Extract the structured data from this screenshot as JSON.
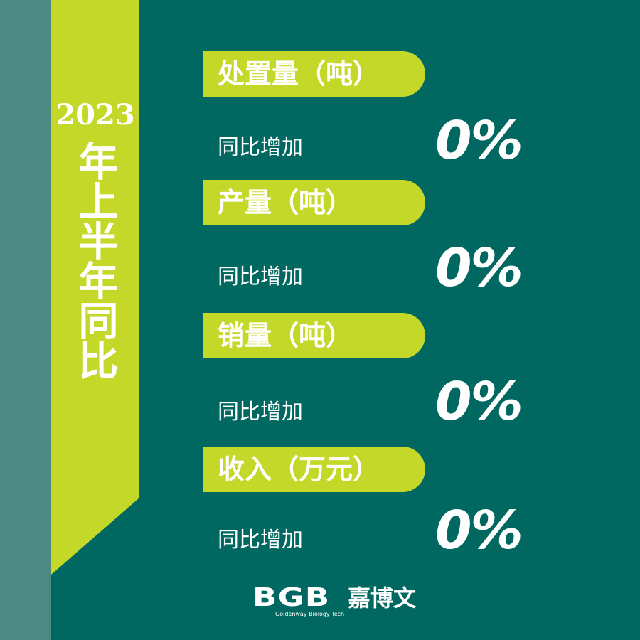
{
  "colors": {
    "background": "#006860",
    "accent": "#c4d82a",
    "side_strip": "#4e8882",
    "text": "#ffffff"
  },
  "banner": {
    "year": "2023",
    "title": "年上半年同比"
  },
  "metrics": [
    {
      "label": "处置量（吨）",
      "sub": "同比增加",
      "value": "0%"
    },
    {
      "label": "产量（吨）",
      "sub": "同比增加",
      "value": "0%"
    },
    {
      "label": "销量（吨）",
      "sub": "同比增加",
      "value": "0%"
    },
    {
      "label": "收入（万元）",
      "sub": "同比增加",
      "value": "0%"
    }
  ],
  "logo": {
    "mark": "BGB",
    "name_cn": "嘉博文",
    "name_en": "Goldenway Biology Tech"
  }
}
